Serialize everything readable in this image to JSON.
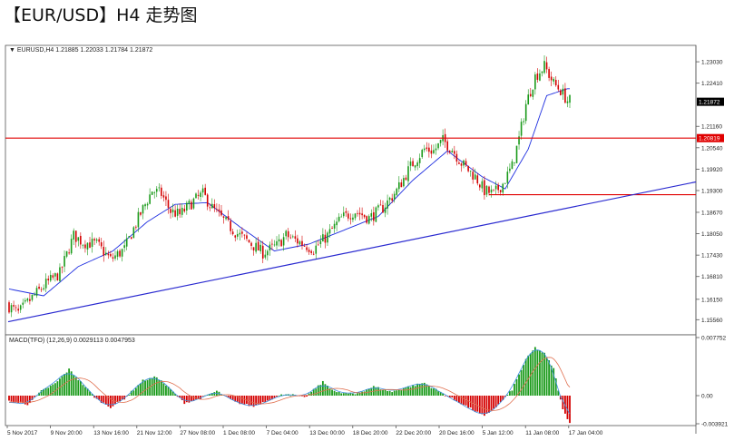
{
  "page": {
    "title": "【EUR/USD】H4 走势图"
  },
  "header": {
    "symbol_line": "▼ EURUSD,H4  1.21885 1.22033 1.21784 1.21872",
    "macd_line": "MACD(TFO) (12,26,9) 0.0029113 0.0047953"
  },
  "colors": {
    "bull": "#1a9a1a",
    "bear": "#d40000",
    "ma": "#1f2fe0",
    "trendline": "#2a2ad0",
    "hline": "#e00000",
    "macd_line": "#3b8ee0",
    "signal_line": "#e07050",
    "price_tag_bg": "#000000",
    "level_tag_bg": "#e00000"
  },
  "chart_data": [
    {
      "type": "candlestick",
      "title": "EURUSD,H4",
      "ylim": [
        1.152,
        1.234
      ],
      "y_ticks": [
        "1.23030",
        "1.22410",
        "1.21872",
        "1.21160",
        "1.20819",
        "1.20540",
        "1.19920",
        "1.19300",
        "1.18670",
        "1.18050",
        "1.17430",
        "1.16810",
        "1.16150",
        "1.15560"
      ],
      "y_tick_values": [
        1.2303,
        1.2241,
        1.2187,
        1.2116,
        1.2082,
        1.2054,
        1.1992,
        1.193,
        1.1867,
        1.1805,
        1.1743,
        1.1681,
        1.1615,
        1.1556
      ],
      "x_labels": [
        "5 Nov 2017",
        "9 Nov 20:00",
        "13 Nov 16:00",
        "21 Nov 12:00",
        "27 Nov 08:00",
        "1 Dec 08:00",
        "7 Dec 04:00",
        "13 Dec 00:00",
        "18 Dec 20:00",
        "22 Dec 20:00",
        "20 Dec 16:00",
        "5 Jan 12:00",
        "11 Jan 08:00",
        "17 Jan 04:00"
      ],
      "current_price": "1.21872",
      "current_price_value": 1.21872,
      "horizontal_level": "1.20819",
      "horizontal_level_value": 1.20819,
      "support_level_value": 1.1918,
      "trendline": {
        "from": [
          0,
          1.155
        ],
        "to": [
          1,
          1.1955
        ]
      },
      "close_anchors": [
        [
          0,
          1.1595
        ],
        [
          4,
          1.1575
        ],
        [
          10,
          1.162
        ],
        [
          16,
          1.166
        ],
        [
          22,
          1.169
        ],
        [
          28,
          1.18
        ],
        [
          32,
          1.178
        ],
        [
          38,
          1.1775
        ],
        [
          44,
          1.173
        ],
        [
          50,
          1.176
        ],
        [
          56,
          1.185
        ],
        [
          62,
          1.193
        ],
        [
          66,
          1.192
        ],
        [
          70,
          1.187
        ],
        [
          74,
          1.186
        ],
        [
          80,
          1.19
        ],
        [
          84,
          1.192
        ],
        [
          88,
          1.188
        ],
        [
          92,
          1.185
        ],
        [
          98,
          1.181
        ],
        [
          104,
          1.178
        ],
        [
          110,
          1.175
        ],
        [
          116,
          1.177
        ],
        [
          120,
          1.18
        ],
        [
          126,
          1.178
        ],
        [
          132,
          1.176
        ],
        [
          138,
          1.18
        ],
        [
          144,
          1.185
        ],
        [
          150,
          1.187
        ],
        [
          156,
          1.185
        ],
        [
          162,
          1.188
        ],
        [
          168,
          1.193
        ],
        [
          174,
          1.2
        ],
        [
          180,
          1.205
        ],
        [
          184,
          1.2045
        ],
        [
          188,
          1.2075
        ],
        [
          192,
          1.205
        ],
        [
          196,
          1.201
        ],
        [
          202,
          1.197
        ],
        [
          206,
          1.193
        ],
        [
          210,
          1.192
        ],
        [
          214,
          1.195
        ],
        [
          218,
          1.2
        ],
        [
          221,
          1.208
        ],
        [
          224,
          1.218
        ],
        [
          228,
          1.226
        ],
        [
          232,
          1.229
        ],
        [
          236,
          1.224
        ],
        [
          239,
          1.222
        ],
        [
          242,
          1.219
        ]
      ],
      "ma_anchors": [
        [
          0,
          1.1645
        ],
        [
          15,
          1.1625
        ],
        [
          30,
          1.171
        ],
        [
          45,
          1.1755
        ],
        [
          60,
          1.184
        ],
        [
          72,
          1.189
        ],
        [
          86,
          1.1895
        ],
        [
          100,
          1.1825
        ],
        [
          115,
          1.1755
        ],
        [
          130,
          1.1775
        ],
        [
          145,
          1.1815
        ],
        [
          160,
          1.1855
        ],
        [
          175,
          1.196
        ],
        [
          190,
          1.2045
        ],
        [
          205,
          1.197
        ],
        [
          215,
          1.1935
        ],
        [
          225,
          1.205
        ],
        [
          233,
          1.2205
        ],
        [
          242,
          1.2225
        ]
      ]
    },
    {
      "type": "bar",
      "title": "MACD(TFO) (12,26,9)",
      "values_text": [
        "0.0029113",
        "0.0047953"
      ],
      "y_ticks": [
        "0.007752",
        "0.00",
        "-0.003921"
      ],
      "ylim": [
        -0.003921,
        0.007752
      ],
      "histogram_anchors": [
        [
          0,
          -0.0008
        ],
        [
          8,
          -0.0012
        ],
        [
          14,
          0.0006
        ],
        [
          20,
          0.0016
        ],
        [
          26,
          0.0035
        ],
        [
          32,
          0.0015
        ],
        [
          38,
          -0.0005
        ],
        [
          44,
          -0.0016
        ],
        [
          50,
          -0.0004
        ],
        [
          58,
          0.002
        ],
        [
          64,
          0.0025
        ],
        [
          70,
          0.0008
        ],
        [
          76,
          -0.001
        ],
        [
          82,
          -0.0005
        ],
        [
          90,
          0.0006
        ],
        [
          98,
          -0.0009
        ],
        [
          106,
          -0.0015
        ],
        [
          114,
          -0.0004
        ],
        [
          120,
          0.0003
        ],
        [
          128,
          -0.0003
        ],
        [
          136,
          0.0018
        ],
        [
          142,
          0.0004
        ],
        [
          150,
          0.0002
        ],
        [
          158,
          0.0012
        ],
        [
          166,
          0.0005
        ],
        [
          172,
          0.0011
        ],
        [
          180,
          0.0017
        ],
        [
          186,
          0.0006
        ],
        [
          192,
          -0.0004
        ],
        [
          200,
          -0.0018
        ],
        [
          206,
          -0.0029
        ],
        [
          212,
          -0.0013
        ],
        [
          218,
          0.0008
        ],
        [
          224,
          0.0048
        ],
        [
          228,
          0.0064
        ],
        [
          232,
          0.0056
        ],
        [
          236,
          0.0036
        ],
        [
          240,
          -0.002
        ],
        [
          243,
          -0.0037
        ]
      ]
    }
  ]
}
